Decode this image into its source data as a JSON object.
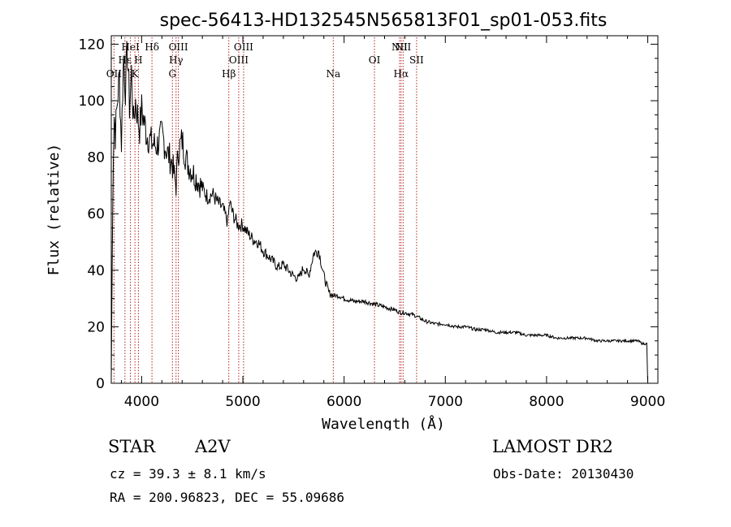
{
  "chart_data": {
    "type": "line",
    "title": "spec-56413-HD132545N565813F01_sp01-053.fits",
    "xlabel": "Wavelength (Å)",
    "ylabel": "Flux (relative)",
    "xlim": [
      3700,
      9100
    ],
    "ylim": [
      0,
      123
    ],
    "xticks": [
      4000,
      5000,
      6000,
      7000,
      8000,
      9000
    ],
    "yticks": [
      0,
      20,
      40,
      60,
      80,
      100,
      120
    ],
    "series": [
      {
        "x": [
          3700,
          3710,
          3720,
          3730,
          3740,
          3760,
          3780,
          3800,
          3820,
          3840,
          3860,
          3880,
          3900,
          3920,
          3940,
          3960,
          3980,
          4000,
          4050,
          4100,
          4150,
          4200,
          4250,
          4300,
          4340,
          4360,
          4400,
          4450,
          4500,
          4550,
          4600,
          4650,
          4700,
          4750,
          4800,
          4850,
          4870,
          4900,
          4950,
          5000,
          5050,
          5100,
          5150,
          5200,
          5250,
          5300,
          5350,
          5400,
          5450,
          5500,
          5550,
          5600,
          5650,
          5700,
          5750,
          5800,
          5850,
          5900,
          5950,
          6000,
          6100,
          6200,
          6300,
          6400,
          6500,
          6560,
          6600,
          6700,
          6800,
          6900,
          7000,
          7100,
          7200,
          7300,
          7400,
          7500,
          7600,
          7700,
          7800,
          7900,
          8000,
          8100,
          8200,
          8300,
          8400,
          8500,
          8600,
          8700,
          8800,
          8900,
          8950,
          8990,
          9000
        ],
        "y": [
          2,
          45,
          82,
          95,
          88,
          100,
          108,
          85,
          115,
          105,
          118,
          98,
          110,
          92,
          100,
          95,
          90,
          97,
          88,
          85,
          84,
          88,
          82,
          78,
          70,
          82,
          86,
          78,
          75,
          72,
          69,
          66,
          67,
          64,
          62,
          57,
          64,
          60,
          56,
          56,
          53,
          51,
          50,
          47,
          45,
          43,
          41,
          42,
          40,
          38,
          37,
          41,
          38,
          46,
          47,
          38,
          32,
          31,
          31,
          30,
          29,
          29,
          28,
          27,
          26,
          25,
          25,
          24,
          22,
          21,
          21,
          20,
          20,
          19,
          19,
          18,
          18,
          18,
          17,
          17,
          17,
          16,
          16,
          16,
          16,
          15,
          15,
          15,
          15,
          15,
          14,
          14,
          0
        ]
      }
    ],
    "lines": [
      {
        "label": "OII",
        "x": 3727,
        "row": 3
      },
      {
        "label": "Hε",
        "x": 3835,
        "row": 2
      },
      {
        "label": "HeI",
        "x": 3889,
        "row": 1
      },
      {
        "label": "K",
        "x": 3934,
        "row": 3
      },
      {
        "label": "H",
        "x": 3968,
        "row": 2
      },
      {
        "label": "Hδ",
        "x": 4102,
        "row": 1
      },
      {
        "label": "G",
        "x": 4304,
        "row": 3
      },
      {
        "label": "Hγ",
        "x": 4340,
        "row": 2
      },
      {
        "label": "OIII",
        "x": 4363,
        "row": 1
      },
      {
        "label": "Hβ",
        "x": 4861,
        "row": 3
      },
      {
        "label": "OIII",
        "x": 4959,
        "row": 2
      },
      {
        "label": "OIII",
        "x": 5007,
        "row": 1
      },
      {
        "label": "Na",
        "x": 5893,
        "row": 3
      },
      {
        "label": "OI",
        "x": 6300,
        "row": 2
      },
      {
        "label": "NII",
        "x": 6548,
        "row": 1
      },
      {
        "label": "Hα",
        "x": 6563,
        "row": 3
      },
      {
        "label": "NII",
        "x": 6583,
        "row": 1
      },
      {
        "label": "SII",
        "x": 6716,
        "row": 2
      }
    ]
  },
  "info": {
    "class_label": "STAR",
    "subclass": "A2V",
    "cz": "cz = 39.3 ± 8.1 km/s",
    "coords": "RA = 200.96823, DEC =  55.09686",
    "survey": "LAMOST DR2",
    "obs_date": "Obs-Date: 20130430"
  }
}
